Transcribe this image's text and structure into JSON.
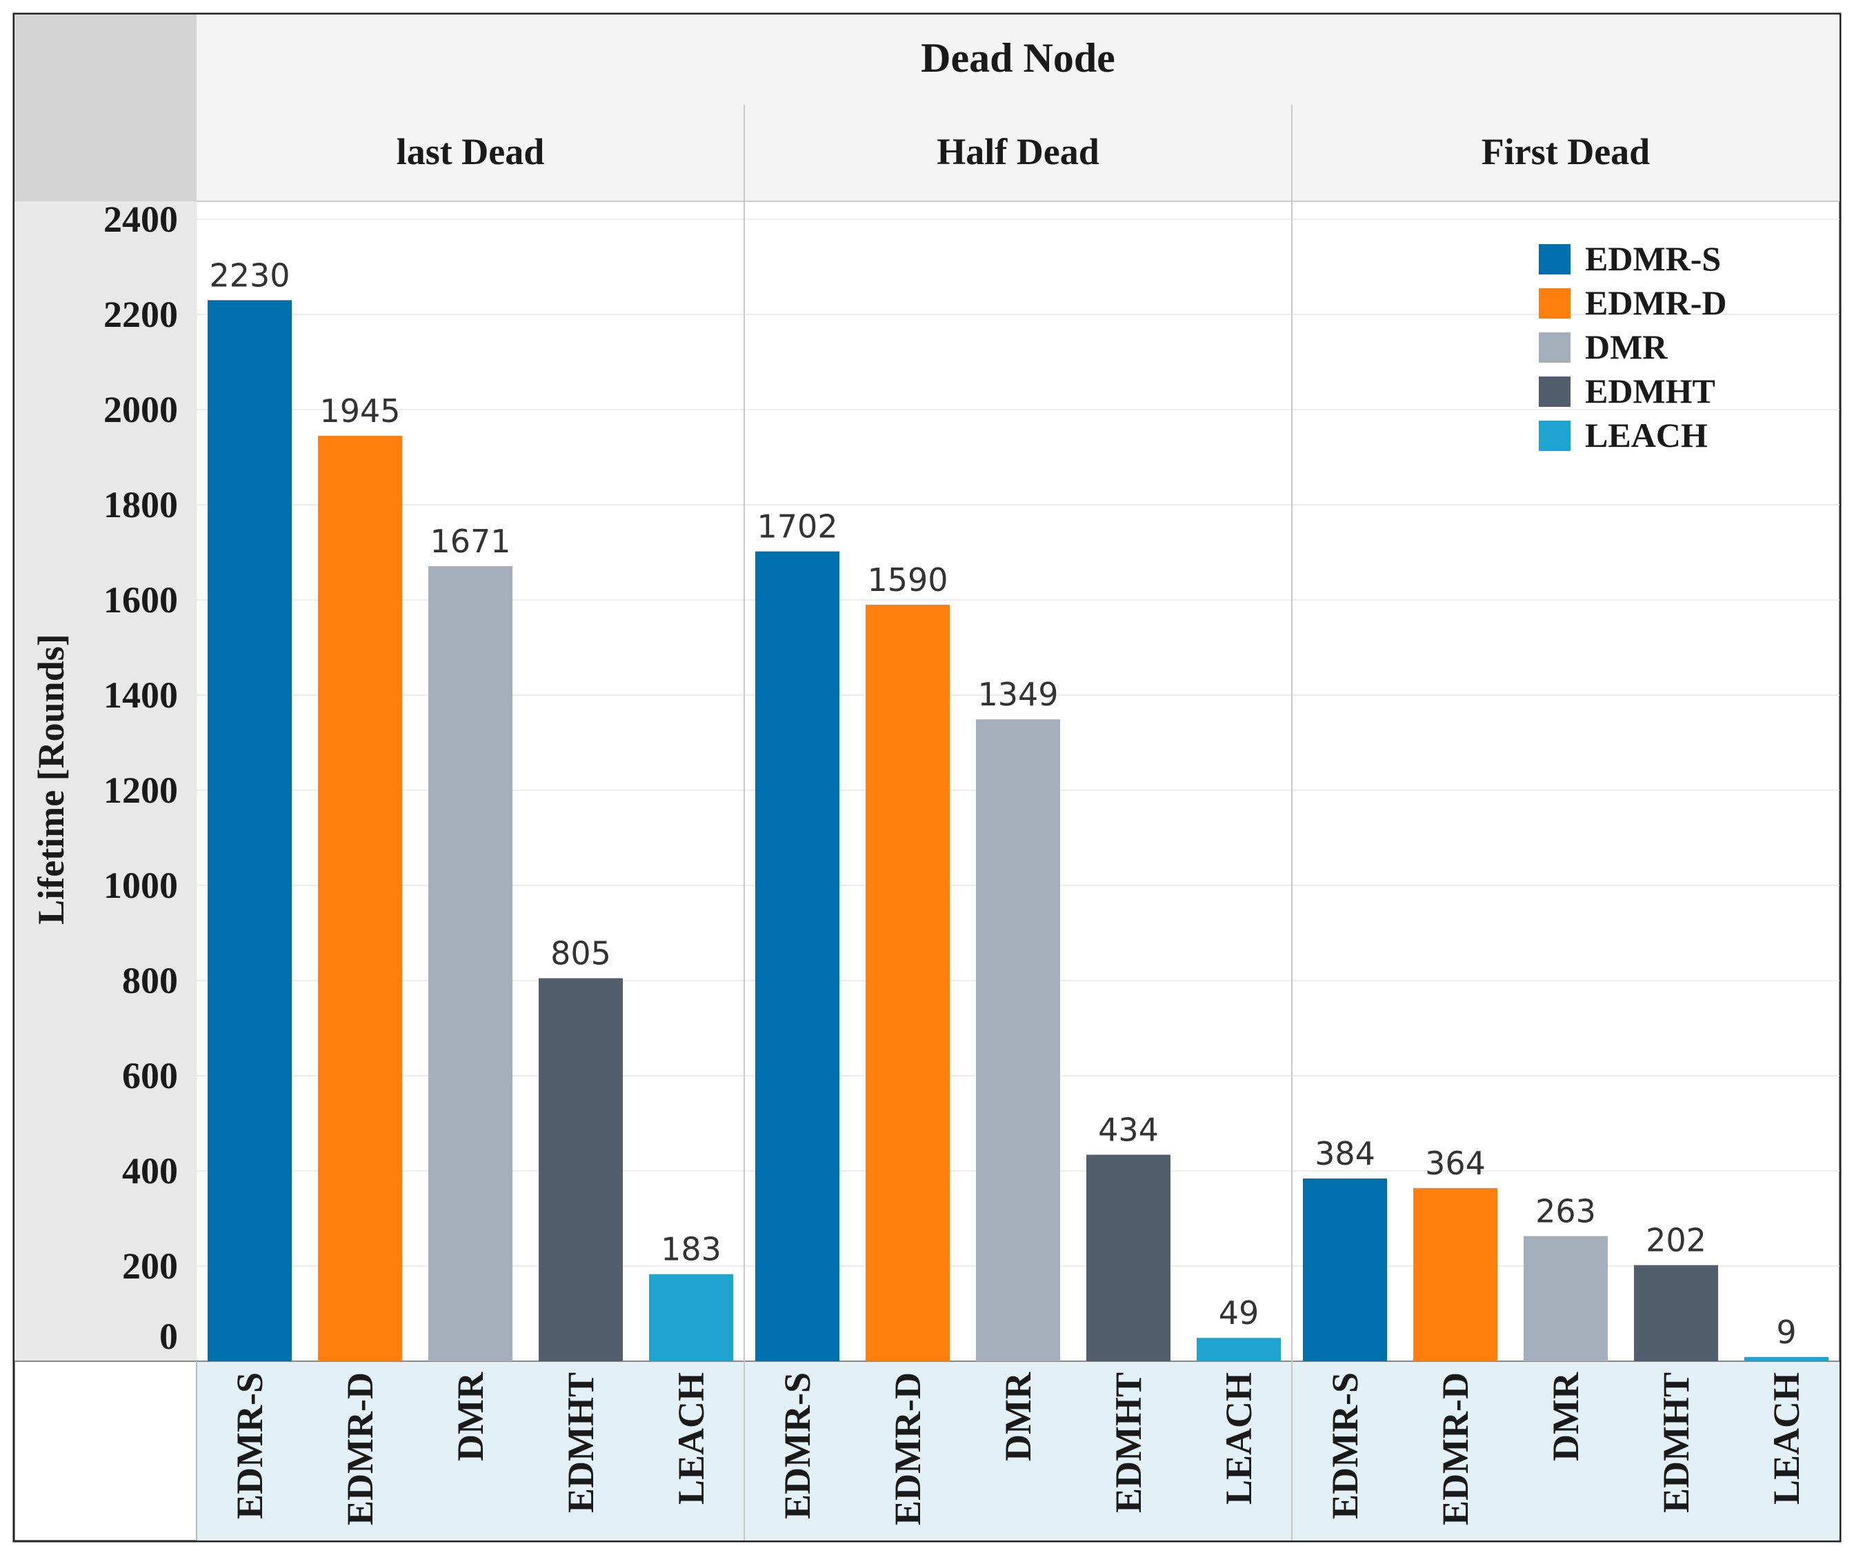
{
  "chart_data": {
    "type": "bar",
    "title": "Dead Node",
    "ylabel": "Lifetime [Rounds]",
    "xlabel": "",
    "ylim": [
      0,
      2400
    ],
    "yticks": [
      0,
      200,
      400,
      600,
      800,
      1000,
      1200,
      1400,
      1600,
      1800,
      2000,
      2200,
      2400
    ],
    "grid": true,
    "legend_position": "top-right",
    "categories": [
      "EDMR-S",
      "EDMR-D",
      "DMR",
      "EDMHT",
      "LEACH"
    ],
    "groups": [
      {
        "name": "last Dead",
        "values": [
          2230,
          1945,
          1671,
          805,
          183
        ]
      },
      {
        "name": "Half Dead",
        "values": [
          1702,
          1590,
          1349,
          434,
          49
        ]
      },
      {
        "name": "First Dead",
        "values": [
          384,
          364,
          263,
          202,
          9
        ]
      }
    ],
    "colors": {
      "EDMR-S": "#006fae",
      "EDMR-D": "#ff7f0e",
      "DMR": "#a4afbb",
      "EDMHT": "#525e6b",
      "LEACH": "#1fa4d2"
    },
    "legend": [
      "EDMR-S",
      "EDMR-D",
      "DMR",
      "EDMHT",
      "LEACH"
    ]
  }
}
